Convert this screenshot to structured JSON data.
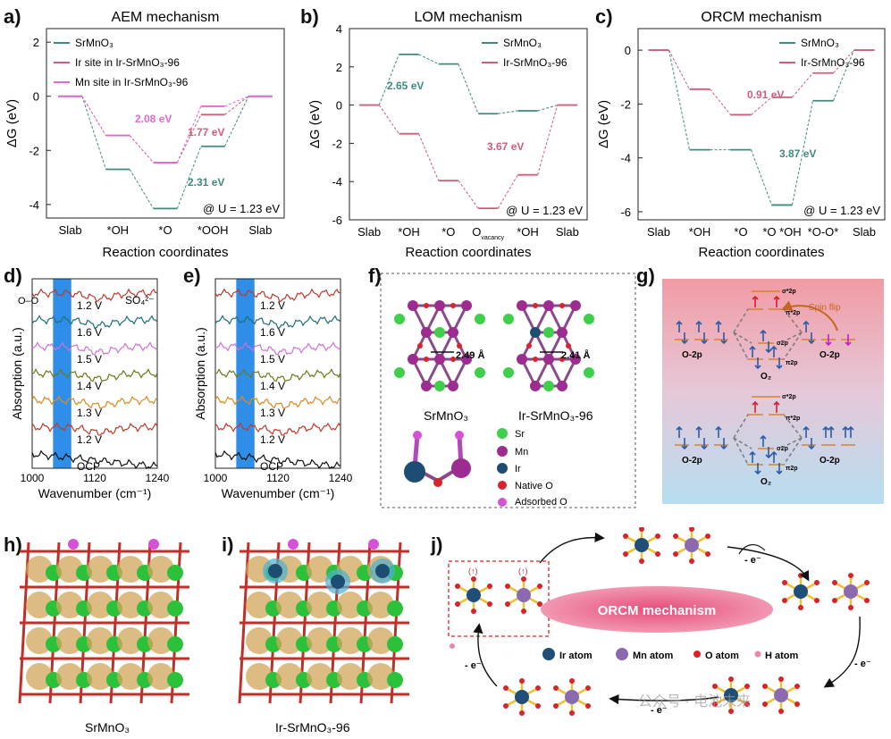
{
  "panel_labels": [
    "a)",
    "b)",
    "c)",
    "d)",
    "e)",
    "f)",
    "g)",
    "h)",
    "i)",
    "j)"
  ],
  "colors": {
    "teal": "#3f8a7e",
    "rose": "#c9607a",
    "magenta": "#e36ad0",
    "blue_band": "#2f8ee8",
    "orbital_bg_top": "#f1a9ad",
    "orbital_bg_bottom": "#bfe0ee",
    "ir": "#1f4f78",
    "mn": "#8c6ab0",
    "o": "#d8232a",
    "h": "#e48aa6",
    "sr": "#3fcf4a"
  },
  "chart_data": [
    {
      "type": "line",
      "title": "AEM mechanism",
      "xlabel": "Reaction coordinates",
      "ylabel": "ΔG (eV)",
      "ylim": [
        -4.5,
        2.5
      ],
      "yticks": [
        2,
        0,
        -2,
        -4
      ],
      "categories": [
        "Slab",
        "*OH",
        "*O",
        "*OOH",
        "Slab"
      ],
      "series": [
        {
          "name": "SrMnO3",
          "legend": "SrMnO₃",
          "color": "teal",
          "values": [
            0,
            -2.7,
            -4.15,
            -1.85,
            0
          ]
        },
        {
          "name": "Ir site in Ir-SrMnO3-96",
          "legend": "Ir site in Ir-SrMnO₃-96",
          "color": "rose",
          "values": [
            0,
            -1.45,
            -2.45,
            -0.68,
            0
          ]
        },
        {
          "name": "Mn site in Ir-SrMnO3-96",
          "legend": "Mn site in Ir-SrMnO₃-96",
          "color": "magenta",
          "values": [
            0,
            -1.45,
            -2.45,
            -0.37,
            0
          ]
        }
      ],
      "annotations": [
        {
          "text": "2.08 eV",
          "color": "magenta"
        },
        {
          "text": "1.77 eV",
          "color": "rose"
        },
        {
          "text": "2.31 eV",
          "color": "teal"
        }
      ],
      "condition": "@ U = 1.23 eV"
    },
    {
      "type": "line",
      "title": "LOM mechanism",
      "xlabel": "Reaction coordinates",
      "ylabel": "ΔG (eV)",
      "ylim": [
        -6,
        4
      ],
      "yticks": [
        4,
        2,
        0,
        -2,
        -4,
        -6
      ],
      "categories": [
        "Slab",
        "*OH",
        "*O",
        "O",
        "*OH",
        "Slab"
      ],
      "category_subscripts": [
        "",
        "",
        "",
        "vacancy",
        "",
        ""
      ],
      "series": [
        {
          "name": "SrMnO3",
          "legend": "SrMnO₃",
          "color": "teal",
          "values": [
            0,
            2.65,
            2.15,
            -0.45,
            -0.3,
            0
          ]
        },
        {
          "name": "Ir-SrMnO3-96",
          "legend": "Ir-SrMnO₃-96",
          "color": "rose",
          "values": [
            0,
            -1.5,
            -3.95,
            -5.4,
            -3.65,
            0
          ]
        }
      ],
      "annotations": [
        {
          "text": "2.65 eV",
          "color": "teal"
        },
        {
          "text": "3.67 eV",
          "color": "rose"
        }
      ],
      "condition": "@ U = 1.23 eV"
    },
    {
      "type": "line",
      "title": "ORCM mechanism",
      "xlabel": "Reaction coordinates",
      "ylabel": "ΔG (eV)",
      "ylim": [
        -6.3,
        0.8
      ],
      "yticks": [
        0,
        -2,
        -4,
        -6
      ],
      "categories": [
        "Slab",
        "*OH",
        "*O",
        "*O *OH",
        "*O-O*",
        "Slab"
      ],
      "series": [
        {
          "name": "SrMnO3",
          "legend": "SrMnO₃",
          "color": "teal",
          "values": [
            0,
            -3.7,
            -3.7,
            -5.75,
            -1.88,
            0
          ]
        },
        {
          "name": "Ir-SrMnO3-96",
          "legend": "Ir-SrMnO₃-96",
          "color": "rose",
          "values": [
            0,
            -1.45,
            -2.4,
            -1.75,
            -0.85,
            0
          ]
        }
      ],
      "annotations": [
        {
          "text": "0.91 eV",
          "color": "rose"
        },
        {
          "text": "3.87 eV",
          "color": "teal"
        }
      ],
      "condition": "@ U = 1.23 eV"
    },
    {
      "type": "line",
      "panel": "d)",
      "xlabel": "Wavenumber (cm⁻¹)",
      "ylabel": "Absorption (a.u.)",
      "xlim": [
        1000,
        1240
      ],
      "xticks": [
        1000,
        1120,
        1240
      ],
      "highlight_band": [
        1040,
        1075
      ],
      "series_labels": [
        "1.2 V",
        "1.6 V",
        "1.5 V",
        "1.4 V",
        "1.3 V",
        "1.2 V",
        "OCP"
      ],
      "annotations": [
        "O–O",
        "SO₄²⁻"
      ]
    },
    {
      "type": "line",
      "panel": "e)",
      "xlabel": "Wavenumber (cm⁻¹)",
      "ylabel": "Absorption (a.u.)",
      "xlim": [
        1000,
        1240
      ],
      "xticks": [
        1000,
        1120,
        1240
      ],
      "highlight_band": [
        1040,
        1075
      ],
      "series_labels": [
        "1.2 V",
        "1.6 V",
        "1.5 V",
        "1.4 V",
        "1.3 V",
        "1.2 V",
        "OCP"
      ]
    }
  ],
  "panel_f": {
    "bond_left": "2.49 Å",
    "bond_right": "2.41 Å",
    "caption_left": "SrMnO₃",
    "caption_right": "Ir-SrMnO₃-96",
    "legend": [
      "Sr",
      "Mn",
      "Ir",
      "Native O",
      "Adsorbed O"
    ]
  },
  "panel_g": {
    "spin_flip": "Spin flip",
    "o2p": "O-2p",
    "o2": "O₂",
    "orbitals": [
      "σ*2p",
      "π*2p",
      "σ2p",
      "π2p"
    ]
  },
  "panel_h_caption": "SrMnO₃",
  "panel_i_caption": "Ir-SrMnO₃-96",
  "panel_j": {
    "center_label": "ORCM mechanism",
    "spin_label": "(↑)",
    "electron": "- e⁻",
    "legend": [
      "Ir atom",
      "Mn atom",
      "O atom",
      "H atom"
    ]
  },
  "watermark": "公众号 · 电池未来"
}
